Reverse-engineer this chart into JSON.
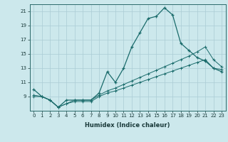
{
  "xlabel": "Humidex (Indice chaleur)",
  "bg_color": "#cce8ec",
  "grid_color": "#aaccd4",
  "line_color": "#1a6b6b",
  "xlim": [
    -0.5,
    23.5
  ],
  "ylim": [
    7,
    22
  ],
  "yticks": [
    9,
    11,
    13,
    15,
    17,
    19,
    21
  ],
  "xticks": [
    0,
    1,
    2,
    3,
    4,
    5,
    6,
    7,
    8,
    9,
    10,
    11,
    12,
    13,
    14,
    15,
    16,
    17,
    18,
    19,
    20,
    21,
    22,
    23
  ],
  "line1_x": [
    0,
    1,
    2,
    3,
    4,
    5,
    6,
    7,
    8,
    9,
    10,
    11,
    12,
    13,
    14,
    15,
    16,
    17,
    18,
    19,
    20,
    21,
    22,
    23
  ],
  "line1_y": [
    10.0,
    9.0,
    8.5,
    7.5,
    8.5,
    8.5,
    8.5,
    8.5,
    9.5,
    12.5,
    11.0,
    13.0,
    16.0,
    18.0,
    20.0,
    20.3,
    21.5,
    20.5,
    16.5,
    15.5,
    14.5,
    14.0,
    13.0,
    12.5
  ],
  "line2_x": [
    0,
    1,
    2,
    3,
    4,
    5,
    6,
    7,
    8,
    9,
    10,
    11,
    12,
    13,
    14,
    15,
    16,
    17,
    18,
    19,
    20,
    21,
    22,
    23
  ],
  "line2_y": [
    9.2,
    9.0,
    8.5,
    7.5,
    8.0,
    8.5,
    8.5,
    8.5,
    9.2,
    9.8,
    10.2,
    10.7,
    11.2,
    11.7,
    12.2,
    12.7,
    13.2,
    13.7,
    14.2,
    14.7,
    15.3,
    16.0,
    14.2,
    13.2
  ],
  "line3_x": [
    0,
    1,
    2,
    3,
    4,
    5,
    6,
    7,
    8,
    9,
    10,
    11,
    12,
    13,
    14,
    15,
    16,
    17,
    18,
    19,
    20,
    21,
    22,
    23
  ],
  "line3_y": [
    9.0,
    9.0,
    8.5,
    7.5,
    8.0,
    8.3,
    8.3,
    8.3,
    9.0,
    9.5,
    9.8,
    10.2,
    10.6,
    11.0,
    11.4,
    11.8,
    12.2,
    12.6,
    13.0,
    13.4,
    13.8,
    14.2,
    13.0,
    12.8
  ],
  "tick_fontsize": 5,
  "xlabel_fontsize": 6
}
